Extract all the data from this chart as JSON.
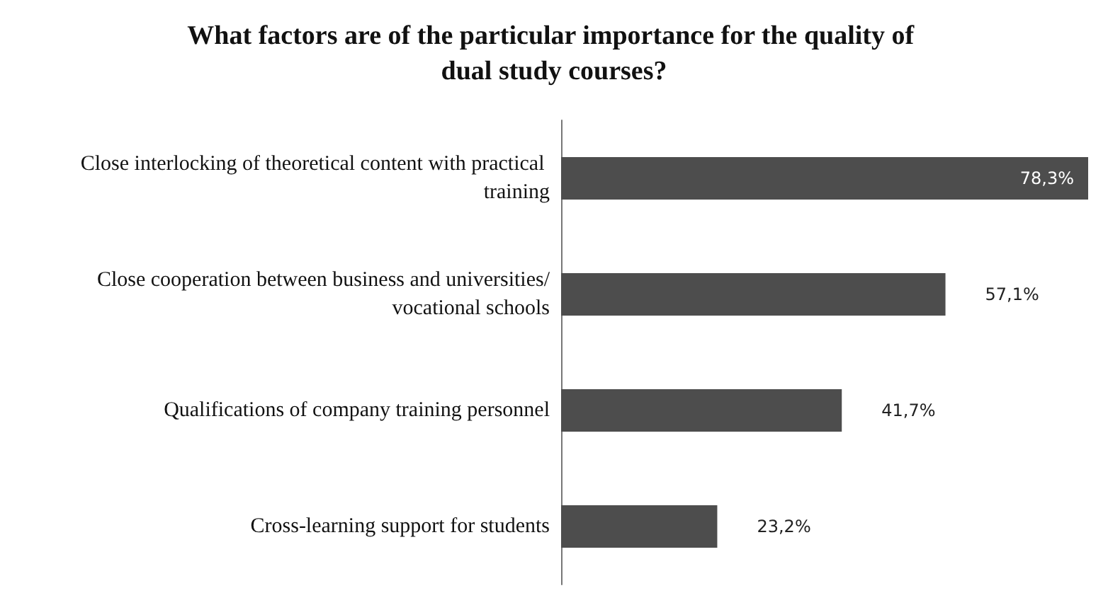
{
  "chart_data": {
    "type": "bar",
    "orientation": "horizontal",
    "title": "What factors are of the particular importance for the quality of dual study courses?",
    "categories": [
      "Close interlocking of theoretical content with practical training",
      "Close cooperation between business and universities/vocational schools",
      "Qualifications of company training personnel",
      "Cross-learning support for students"
    ],
    "values": [
      78.3,
      57.1,
      41.7,
      23.2
    ],
    "value_labels": [
      "78,3%",
      "57,1%",
      "41,7%",
      "23,2%"
    ],
    "color": "#4d4d4d"
  }
}
